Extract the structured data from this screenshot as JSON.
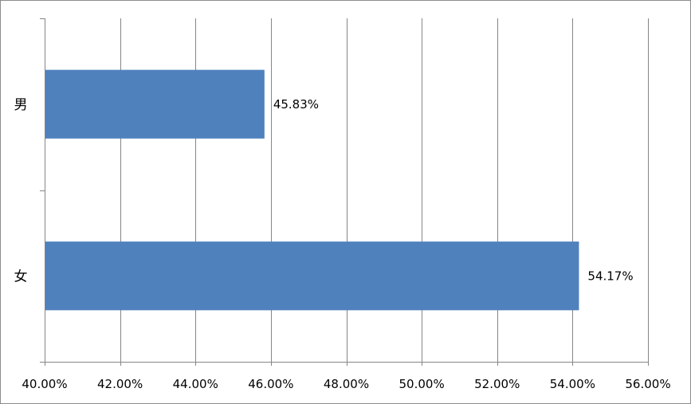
{
  "chart_data": {
    "type": "bar",
    "orientation": "horizontal",
    "categories": [
      "男",
      "女"
    ],
    "values": [
      45.83,
      54.17
    ],
    "value_labels": [
      "45.83%",
      "54.17%"
    ],
    "xlim": [
      40,
      56
    ],
    "x_ticks": [
      40,
      42,
      44,
      46,
      48,
      50,
      52,
      54,
      56
    ],
    "x_tick_labels": [
      "40.00%",
      "42.00%",
      "44.00%",
      "46.00%",
      "48.00%",
      "50.00%",
      "52.00%",
      "54.00%",
      "56.00%"
    ],
    "grid": "vertical",
    "legend": "none",
    "bar_color": "#4f81bd",
    "grid_color": "#868686",
    "axis_color": "#868686"
  }
}
